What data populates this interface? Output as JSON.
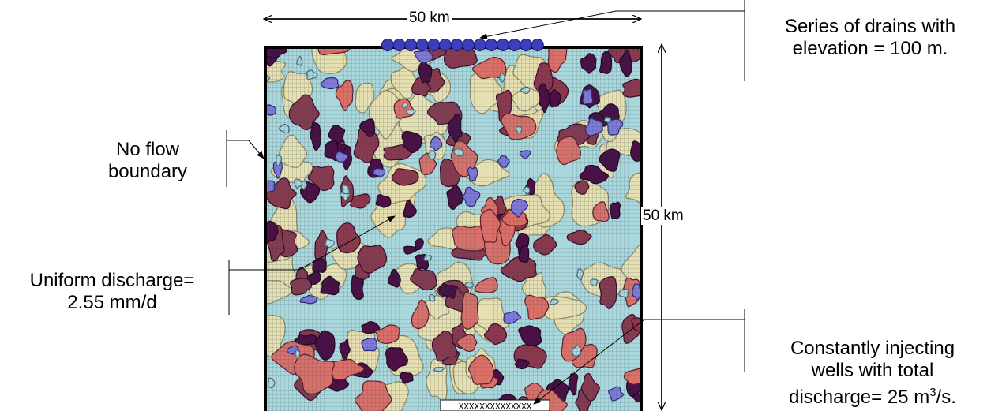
{
  "dimensions": {
    "width_label": "50 km",
    "height_label": "50 km"
  },
  "annotations": {
    "drains": {
      "line1": "Series of drains with",
      "line2": "elevation = 100 m."
    },
    "no_flow": {
      "line1": "No flow",
      "line2": "boundary"
    },
    "uniform_discharge": {
      "line1": "Uniform discharge=",
      "line2": "2.55 mm/d"
    },
    "injecting_wells": {
      "line1": "Constantly injecting",
      "line2": "wells with total",
      "line3_prefix": "discharge= 25 m",
      "line3_sup": "3",
      "line3_suffix": "/s."
    }
  },
  "wells_marker": "XXXXXXXXXXXXXX",
  "drain_count": 14,
  "colors": {
    "light_blue": "#a9d7dc",
    "beige": "#e6dfb1",
    "salmon": "#d9716a",
    "maroon": "#8a3a4e",
    "dark_purple": "#4a0f45",
    "periwinkle": "#7f7ad9",
    "drain_fill": "#3d3dbf"
  }
}
